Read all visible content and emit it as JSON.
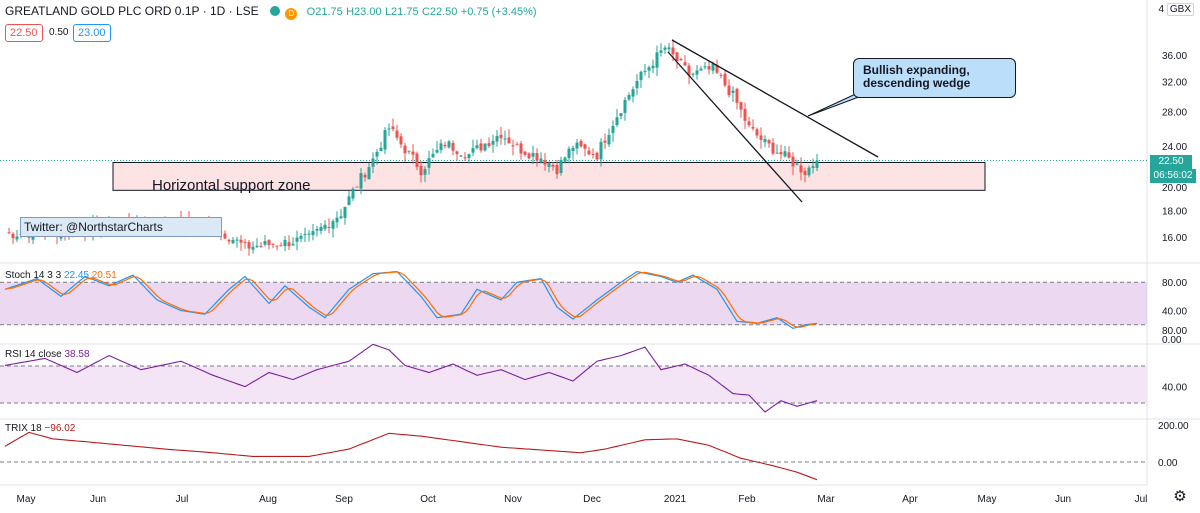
{
  "header": {
    "symbol": "GREATLAND GOLD PLC ORD 0.1P · 1D · LSE",
    "open": "O21.75",
    "high": "H23.00",
    "low": "L21.75",
    "close": "C22.50",
    "change": "+0.75 (+3.45%)",
    "currency": "GBX",
    "scale_label": "4",
    "bid": "22.50",
    "spread": "0.50",
    "ask": "23.00"
  },
  "colors": {
    "up": "#26a69a",
    "down": "#ef5350",
    "support_fill": "#fde3e3",
    "stoch_k": "#2196f3",
    "stoch_d": "#ff6d00",
    "stoch_band": "#e1bee7",
    "rsi": "#7b1fa2",
    "rsi_band": "#f3e5f5",
    "trix": "#b71c1c",
    "callout_fill": "#bbdefb"
  },
  "annotations": {
    "support": "Horizontal support zone",
    "wedge": "Bullish expanding, descending wedge",
    "twitter": "Twitter: @NorthstarCharts"
  },
  "price_tags": {
    "last": "22.50",
    "countdown": "06:56:02"
  },
  "panes": {
    "stoch": {
      "label": "Stoch 14 3 3",
      "k": "22.45",
      "d": "20.51"
    },
    "rsi": {
      "label": "RSI 14 close",
      "value": "38.58"
    },
    "trix": {
      "label": "TRIX 18",
      "value": "−96.02"
    }
  },
  "chart_data": {
    "type": "candlestick",
    "x_ticks": [
      "May",
      "Jun",
      "Jul",
      "Aug",
      "Sep",
      "Oct",
      "Nov",
      "Dec",
      "2021",
      "Feb",
      "Mar",
      "Apr",
      "May",
      "Jun",
      "Jul"
    ],
    "price_axis": {
      "scale": "log",
      "ticks": [
        16,
        18,
        20,
        24,
        28,
        32,
        36
      ]
    },
    "stoch_axis": {
      "ticks": [
        80,
        40,
        0
      ],
      "band": [
        20,
        80
      ]
    },
    "rsi_axis": {
      "ticks": [
        80,
        40
      ],
      "band": [
        30,
        70
      ]
    },
    "trix_axis": {
      "ticks": [
        200,
        0
      ]
    },
    "last_price": 22.5,
    "key_closes": [
      {
        "period": "late Jul",
        "approx_close": 15.5
      },
      {
        "period": "mid Sep",
        "approx_close": 25.5
      },
      {
        "period": "late Dec",
        "approx_close": 37.2
      },
      {
        "period": "mid Feb",
        "approx_close": 22.0
      },
      {
        "period": "late Feb",
        "approx_close": 22.5
      }
    ],
    "support_zone": [
      19.7,
      22.3
    ]
  }
}
